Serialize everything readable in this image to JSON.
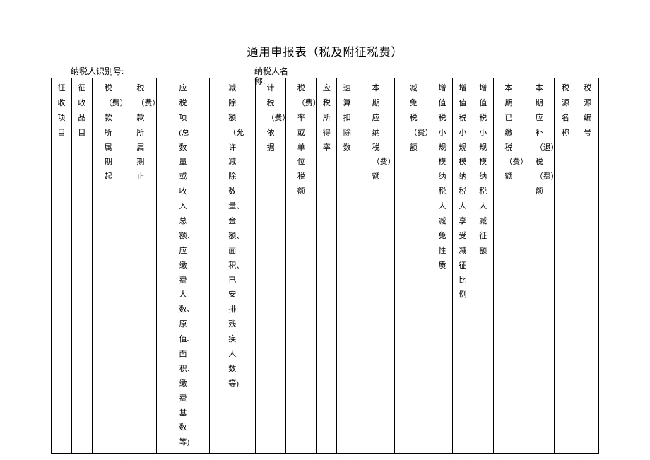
{
  "title": "通用申报表（税及附征税费）",
  "meta": {
    "taxpayer_id_label": "纳税人识别号:",
    "taxpayer_name_label_a": "纳税人名",
    "taxpayer_name_label_b": "称:"
  },
  "columns": [
    {
      "text": "征收项目",
      "width": 24
    },
    {
      "text": "征收品目",
      "width": 24
    },
    {
      "text": "税（费）款所属期起",
      "width": 38
    },
    {
      "text": "税（费）款所属期止",
      "width": 38
    },
    {
      "text": "应税项(总数量或收入总额、应缴费人数、原值、面积、缴费基数等)",
      "width": 62
    },
    {
      "text": "减除额（允许减除数量、金额、面积、已安排残疾人数等)",
      "width": 54
    },
    {
      "text": "计税（费）依据",
      "width": 36
    },
    {
      "text": "税（费）率或单位税额",
      "width": 36
    },
    {
      "text": "应税所得率",
      "width": 24
    },
    {
      "text": "速算扣除数",
      "width": 24
    },
    {
      "text": "本期应纳税（费）额",
      "width": 44
    },
    {
      "text": "减免税（费）额",
      "width": 44
    },
    {
      "text": "增值税小规模纳税人减免性质",
      "width": 24
    },
    {
      "text": "增值税小规模纳税人享受减征比例",
      "width": 24
    },
    {
      "text": "增值税小规模纳税人减征额",
      "width": 24
    },
    {
      "text": "本期已缴税（费）额",
      "width": 36
    },
    {
      "text": "本期应补（退）税（费）额",
      "width": 36
    },
    {
      "text": "税源名称",
      "width": 26
    },
    {
      "text": "税源编号",
      "width": 26
    }
  ],
  "style": {
    "background": "#ffffff",
    "border_color": "#000000",
    "title_fontsize": 16,
    "cell_fontsize": 11,
    "meta_fontsize": 12
  }
}
